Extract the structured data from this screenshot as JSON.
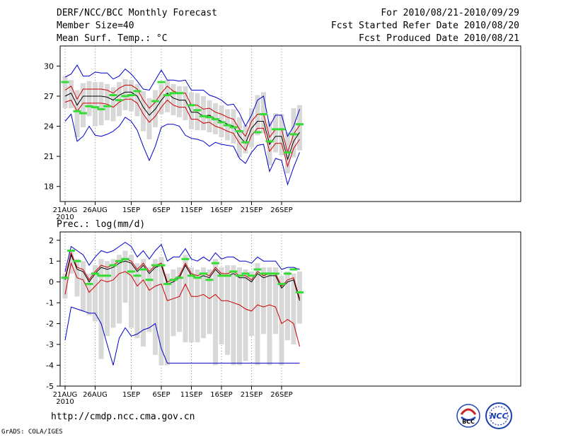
{
  "header": {
    "title": "DERF/NCC/BCC Monthly Forecast",
    "member_size": "Member Size=40",
    "variable": "Mean Surf. Temp.: °C",
    "period": "For 2010/08/21-2010/09/29",
    "refer_date": "Fcst Started Refer Date 2010/08/20",
    "produced_date": "Fcst Produced Date 2010/08/21"
  },
  "precip_label": "Prec.: log(mm/d)",
  "footer": {
    "url": "http://cmdp.ncc.cma.gov.cn",
    "grads": "GrADS: COLA/IGES"
  },
  "logos": {
    "bcc": "BCC",
    "ncc": "NCC"
  },
  "colors": {
    "median": "#000000",
    "quartile": "#cc0000",
    "extreme": "#0000cc",
    "box": "#d8d8d8",
    "obs": "#33dd33",
    "grid": "#888888"
  },
  "chart_data": [
    {
      "id": "temperature",
      "type": "box_line",
      "title": "Mean Surf. Temp.: °C",
      "x_ticks": [
        "21AUG",
        "26AUG",
        "1SEP",
        "6SEP",
        "11SEP",
        "16SEP",
        "21SEP",
        "26SEP"
      ],
      "x_tick_day": [
        0,
        5,
        11,
        16,
        21,
        26,
        31,
        36
      ],
      "x_sublabel": "2010",
      "ylim": [
        16.5,
        32
      ],
      "y_ticks": [
        18,
        21,
        24,
        27,
        30
      ],
      "median": [
        27.0,
        27.3,
        26.1,
        27.0,
        27.0,
        27.0,
        27.0,
        26.9,
        26.6,
        27.1,
        27.4,
        27.4,
        27.0,
        25.9,
        25.1,
        25.7,
        26.6,
        27.3,
        26.8,
        26.6,
        26.6,
        25.4,
        25.4,
        25.0,
        25.1,
        24.7,
        24.5,
        24.2,
        24.0,
        23.0,
        22.3,
        23.8,
        24.5,
        24.5,
        22.2,
        23.0,
        23.0,
        20.7,
        22.5,
        23.4
      ],
      "q_upper": [
        27.6,
        28.0,
        26.7,
        27.7,
        27.7,
        27.7,
        27.7,
        27.6,
        27.3,
        27.8,
        28.1,
        28.1,
        27.7,
        26.6,
        25.8,
        26.4,
        27.3,
        28.0,
        27.5,
        27.3,
        27.3,
        26.1,
        26.1,
        25.7,
        25.8,
        25.4,
        25.2,
        24.9,
        24.7,
        23.7,
        23.0,
        24.5,
        25.2,
        25.2,
        22.9,
        23.7,
        23.7,
        21.4,
        23.2,
        24.1
      ],
      "q_lower": [
        26.4,
        26.6,
        25.5,
        26.3,
        26.3,
        26.3,
        26.3,
        26.2,
        25.9,
        26.4,
        26.7,
        26.7,
        26.3,
        25.2,
        24.4,
        25.0,
        25.9,
        26.6,
        26.1,
        25.9,
        25.9,
        24.7,
        24.7,
        24.3,
        24.4,
        24.0,
        23.8,
        23.5,
        23.3,
        22.3,
        21.6,
        23.1,
        23.8,
        23.8,
        21.5,
        22.3,
        22.3,
        20.0,
        21.8,
        22.7
      ],
      "ext_upper": [
        28.9,
        29.2,
        30.1,
        29.0,
        29.0,
        29.4,
        29.3,
        29.3,
        28.7,
        29.0,
        29.7,
        29.2,
        28.5,
        27.7,
        27.6,
        28.6,
        29.6,
        28.6,
        28.6,
        28.5,
        28.6,
        27.6,
        27.6,
        27.6,
        27.1,
        26.9,
        26.6,
        26.1,
        26.2,
        25.3,
        24.0,
        25.1,
        26.6,
        27.0,
        24.0,
        25.1,
        25.1,
        23.0,
        24.0,
        25.7
      ],
      "ext_lower": [
        24.5,
        25.2,
        22.5,
        23.0,
        24.0,
        23.1,
        23.0,
        23.2,
        23.5,
        24.0,
        24.9,
        24.5,
        23.6,
        22.0,
        20.6,
        22.0,
        23.9,
        24.2,
        24.2,
        24.0,
        23.1,
        22.8,
        22.7,
        22.5,
        22.0,
        22.4,
        22.2,
        22.1,
        22.0,
        20.8,
        20.3,
        21.4,
        22.1,
        22.2,
        19.5,
        20.8,
        20.6,
        18.2,
        19.9,
        21.4
      ],
      "box_upper": [
        29.0,
        28.6,
        27.6,
        28.3,
        28.5,
        28.4,
        28.4,
        28.2,
        27.9,
        28.4,
        28.7,
        28.6,
        28.2,
        27.5,
        26.8,
        27.6,
        28.2,
        28.6,
        28.2,
        28.0,
        28.0,
        27.4,
        27.3,
        27.0,
        26.6,
        26.3,
        26.1,
        25.7,
        25.7,
        24.9,
        24.1,
        25.8,
        27.1,
        27.4,
        24.5,
        25.3,
        25.2,
        23.4,
        25.8,
        26.1
      ],
      "box_lower": [
        25.8,
        25.8,
        22.9,
        23.9,
        25.0,
        24.0,
        24.1,
        24.6,
        24.5,
        25.0,
        25.6,
        25.5,
        25.0,
        23.5,
        22.7,
        23.9,
        25.2,
        25.4,
        25.1,
        24.9,
        24.6,
        23.7,
        23.6,
        23.6,
        23.4,
        23.2,
        22.9,
        22.6,
        22.3,
        20.9,
        21.3,
        21.9,
        23.1,
        23.3,
        20.1,
        21.4,
        21.1,
        19.3,
        20.9,
        21.6
      ],
      "observed": [
        28.4,
        null,
        25.5,
        25.3,
        26.0,
        25.9,
        25.7,
        26.0,
        27.1,
        26.6,
        27.0,
        27.1,
        27.5,
        null,
        null,
        26.5,
        28.4,
        27.1,
        27.3,
        27.3,
        null,
        26.1,
        25.6,
        25.0,
        24.9,
        24.7,
        24.4,
        24.1,
        23.9,
        23.5,
        22.4,
        null,
        23.4,
        25.2,
        22.5,
        23.7,
        23.7,
        21.4,
        23.2,
        24.2
      ]
    },
    {
      "id": "precipitation",
      "type": "box_line",
      "title": "Prec.: log(mm/d)",
      "x_ticks": [
        "21AUG",
        "26AUG",
        "1SEP",
        "6SEP",
        "11SEP",
        "16SEP",
        "21SEP",
        "26SEP"
      ],
      "x_tick_day": [
        0,
        5,
        11,
        16,
        21,
        26,
        31,
        36
      ],
      "x_sublabel": "2010",
      "ylim": [
        -5,
        2.4
      ],
      "y_ticks": [
        -5,
        -4,
        -3,
        -2,
        -1,
        0,
        1,
        2
      ],
      "median": [
        0.1,
        1.3,
        0.6,
        0.5,
        0.0,
        0.4,
        0.7,
        0.6,
        0.7,
        0.9,
        1.0,
        0.9,
        0.5,
        0.8,
        0.4,
        0.7,
        0.8,
        -0.1,
        0.0,
        0.2,
        0.8,
        0.3,
        0.2,
        0.3,
        0.2,
        0.6,
        0.3,
        0.3,
        0.4,
        0.2,
        0.2,
        0.0,
        0.4,
        0.2,
        0.3,
        0.3,
        -0.3,
        0.0,
        0.1,
        -0.9
      ],
      "q_upper": [
        0.2,
        1.4,
        0.7,
        0.6,
        0.1,
        0.5,
        0.8,
        0.7,
        0.8,
        1.0,
        1.1,
        1.0,
        0.6,
        0.9,
        0.5,
        0.8,
        0.9,
        0.0,
        0.1,
        0.3,
        0.9,
        0.4,
        0.3,
        0.4,
        0.3,
        0.7,
        0.4,
        0.4,
        0.5,
        0.3,
        0.3,
        0.1,
        0.5,
        0.3,
        0.4,
        0.4,
        -0.2,
        0.1,
        0.2,
        -0.8
      ],
      "q_lower": [
        -0.6,
        0.9,
        0.2,
        0.1,
        -0.5,
        -0.2,
        0.1,
        0.0,
        0.1,
        0.4,
        0.5,
        0.3,
        -0.2,
        0.1,
        -0.4,
        -0.2,
        -0.1,
        -0.9,
        -0.8,
        -0.7,
        -0.1,
        -0.7,
        -0.7,
        -0.6,
        -0.8,
        -0.6,
        -0.9,
        -0.9,
        -1.0,
        -1.1,
        -1.3,
        -1.4,
        -1.1,
        -1.2,
        -1.1,
        -1.2,
        -2.0,
        -1.8,
        -2.0,
        -3.1
      ],
      "ext_upper": [
        0.5,
        1.7,
        1.5,
        1.3,
        0.8,
        1.2,
        1.5,
        1.4,
        1.5,
        1.7,
        1.9,
        1.7,
        1.2,
        1.5,
        1.1,
        1.5,
        1.8,
        1.0,
        1.2,
        1.2,
        1.6,
        1.1,
        1.0,
        1.2,
        1.0,
        1.4,
        1.1,
        1.2,
        1.2,
        1.0,
        1.0,
        0.9,
        1.2,
        1.0,
        1.0,
        1.0,
        0.6,
        0.7,
        0.7,
        0.6
      ],
      "ext_lower": [
        -2.8,
        -1.2,
        -1.3,
        -1.4,
        -1.5,
        -1.5,
        -2.0,
        -3.0,
        -4.0,
        -2.7,
        -2.2,
        -2.6,
        -2.5,
        -2.3,
        -2.2,
        -2.0,
        -3.2,
        -3.9,
        -3.9,
        -3.9,
        -3.9,
        -3.9,
        -3.9,
        -3.9,
        -3.9,
        -3.9,
        -3.9,
        -3.9,
        -3.9,
        -3.9,
        -3.9,
        -3.9,
        -3.9,
        -3.9,
        -3.9,
        -3.9,
        -3.9,
        -3.9,
        -3.9,
        -3.9
      ],
      "box_upper": [
        0.4,
        1.5,
        1.1,
        1.0,
        0.4,
        0.8,
        1.1,
        1.0,
        1.1,
        1.3,
        1.5,
        1.3,
        0.9,
        1.1,
        0.7,
        1.1,
        1.2,
        0.4,
        0.6,
        0.7,
        1.3,
        0.7,
        0.6,
        0.7,
        0.6,
        1.1,
        0.7,
        0.8,
        0.8,
        0.7,
        0.6,
        0.5,
        0.9,
        0.7,
        0.7,
        0.7,
        0.3,
        0.5,
        0.4,
        0.5
      ],
      "box_lower": [
        -0.8,
        0.4,
        -0.7,
        -1.4,
        -1.6,
        -1.9,
        -3.7,
        -2.6,
        -2.2,
        -2.0,
        -1.0,
        -2.2,
        -2.7,
        -3.1,
        -2.4,
        -3.5,
        -4.0,
        -4.0,
        -2.6,
        -2.4,
        -2.9,
        -2.9,
        -2.9,
        -2.7,
        -2.5,
        -4.0,
        -3.0,
        -3.5,
        -4.0,
        -4.0,
        -3.8,
        -2.6,
        -4.0,
        -2.5,
        -4.0,
        -2.5,
        -4.0,
        -2.8,
        -3.0,
        -2.0
      ],
      "observed": [
        0.2,
        1.5,
        1.0,
        null,
        -0.1,
        0.4,
        0.3,
        0.3,
        0.8,
        1.0,
        1.1,
        0.5,
        0.3,
        0.6,
        0.1,
        0.8,
        0.8,
        -0.1,
        0.1,
        0.2,
        1.1,
        0.3,
        0.2,
        0.4,
        0.1,
        0.9,
        0.3,
        0.3,
        0.5,
        0.3,
        0.4,
        0.3,
        0.6,
        0.4,
        0.4,
        0.4,
        -0.1,
        0.4,
        0.6,
        -0.5
      ]
    }
  ]
}
